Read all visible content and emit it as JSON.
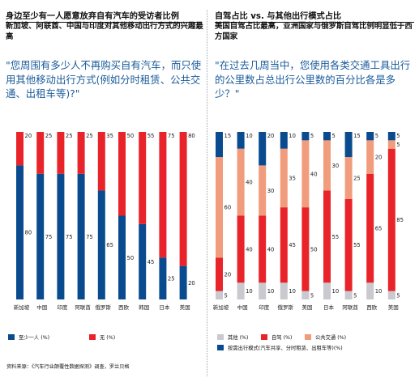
{
  "left": {
    "title": "身边至少有一人愿意放弃自有汽车的受访者比例",
    "subtitle": "新加坡、阿联酋、中国与印度对其他移动出行方式的兴趣最高",
    "question": "\"您周围有多少人不再购买自有汽车，而只使用其他移动出行方式(例如分时租赁、公共交通、出租车等)?\"",
    "legend": [
      {
        "label": "至少一人 (%)",
        "color": "#0a4b8f"
      },
      {
        "label": "无 (%)",
        "color": "#e8242a"
      }
    ],
    "source": "资料来源：《汽车行业颠覆性数据探测》调查，罗兰贝格"
  },
  "right": {
    "title": "自驾占比 vs. 与其他出行模式占比",
    "subtitle": "美国自驾占比最高，亚洲国家与俄罗斯自驾比例明显低于西方国家",
    "question": "\"在过去几周当中，您使用各类交通工具出行的公里数占总出行公里数的百分比各是多少？\"",
    "legend": [
      {
        "label": "其他 (%)",
        "color": "#c9c9cf"
      },
      {
        "label": "自驾 (%)",
        "color": "#e8242a"
      },
      {
        "label": "公共交通 (%)",
        "color": "#f19c7c"
      },
      {
        "label": "按需出行模式(汽车共享、分时租赁、出租车等)(%)",
        "color": "#0a4b8f"
      }
    ]
  },
  "chart_data": [
    {
      "type": "bar",
      "stacked": true,
      "categories": [
        "新加坡",
        "中国",
        "印度",
        "阿联酋",
        "俄罗斯",
        "西欧",
        "韩国",
        "日本",
        "美国"
      ],
      "series": [
        {
          "name": "至少一人 (%)",
          "color": "#0a4b8f",
          "values": [
            80,
            75,
            75,
            75,
            65,
            50,
            45,
            25,
            20
          ]
        },
        {
          "name": "无 (%)",
          "color": "#e8242a",
          "values": [
            20,
            25,
            25,
            25,
            35,
            50,
            55,
            75,
            80
          ]
        }
      ],
      "ylim": [
        0,
        100
      ]
    },
    {
      "type": "bar",
      "stacked": true,
      "categories": [
        "新加坡",
        "中国",
        "印度",
        "俄罗斯",
        "美国",
        "日本",
        "阿联酋",
        "西欧",
        "美国"
      ],
      "series": [
        {
          "name": "其他 (%)",
          "color": "#c9c9cf",
          "values": [
            5,
            10,
            10,
            10,
            5,
            10,
            5,
            10,
            5
          ]
        },
        {
          "name": "自驾 (%)",
          "color": "#e8242a",
          "values": [
            20,
            40,
            40,
            45,
            50,
            55,
            55,
            65,
            85
          ]
        },
        {
          "name": "公共交通 (%)",
          "color": "#f19c7c",
          "values": [
            60,
            40,
            30,
            35,
            40,
            30,
            25,
            20,
            5
          ]
        },
        {
          "name": "按需出行模式(汽车共享、分时租赁、出租车等)(%)",
          "color": "#0a4b8f",
          "values": [
            15,
            10,
            20,
            10,
            5,
            5,
            15,
            5,
            5
          ]
        }
      ],
      "ylim": [
        0,
        100
      ]
    }
  ]
}
